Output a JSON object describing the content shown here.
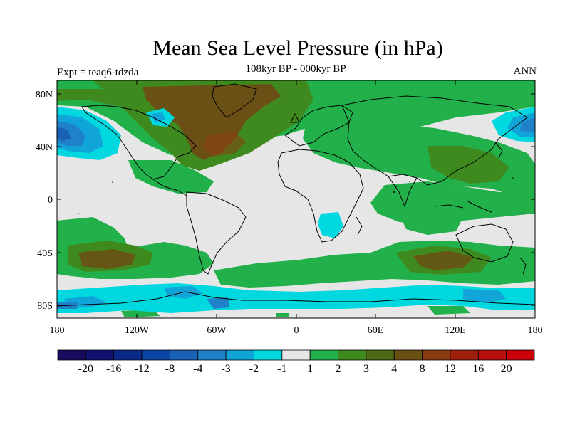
{
  "title": "Mean Sea Level Pressure (in hPa)",
  "subtitle": "108kyr BP - 000kyr BP",
  "left_label": "Expt = teaq6-tdzda",
  "right_label": "ANN",
  "lat_ticks": [
    "80N",
    "40N",
    "0",
    "40S",
    "80S"
  ],
  "lon_ticks": [
    "180",
    "120W",
    "60W",
    "0",
    "60E",
    "120E",
    "180"
  ],
  "colorbar": {
    "labels": [
      "-20",
      "-16",
      "-12",
      "-8",
      "-4",
      "-3",
      "-2",
      "-1",
      "1",
      "2",
      "3",
      "4",
      "8",
      "12",
      "16",
      "20"
    ],
    "colors": [
      "#1a0a5e",
      "#10106e",
      "#0a2a8a",
      "#0a45a6",
      "#1a62b8",
      "#1f82c8",
      "#11a4d8",
      "#00d8e0",
      "#e6e6e6",
      "#22b04a",
      "#3f8a1e",
      "#4f6a16",
      "#6a5014",
      "#8a3c10",
      "#a0200e",
      "#b8100c",
      "#cc0008"
    ]
  },
  "legend_colors": {
    "neutral": "#e6e6e6",
    "positive_light": "#22b04a",
    "positive_mid": "#3f8a1e",
    "positive_strong": "#6a5014",
    "negative_light": "#00d8e0",
    "negative_mid": "#11a4d8",
    "negative_strong": "#1a62b8"
  }
}
